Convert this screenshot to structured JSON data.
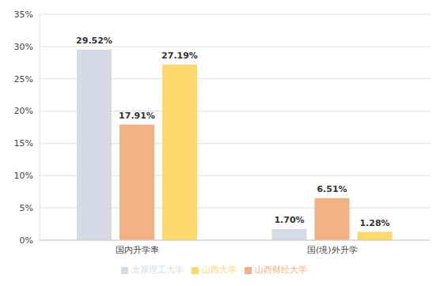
{
  "chart_data": {
    "type": "bar",
    "categories": [
      "国内升学率",
      "国(境)外升学"
    ],
    "series": [
      {
        "name": "太原理工大学",
        "color": "#d5dbe5",
        "values": [
          29.52,
          1.7
        ],
        "value_labels": [
          "29.52%",
          "1.70%"
        ]
      },
      {
        "name": "山西财经大学",
        "color": "#f2b183",
        "values": [
          17.91,
          6.51
        ],
        "value_labels": [
          "17.91%",
          "6.51%"
        ]
      },
      {
        "name": "山西大学",
        "color": "#fdd86a",
        "values": [
          27.19,
          1.28
        ],
        "value_labels": [
          "27.19%",
          "1.28%"
        ]
      }
    ],
    "ylim": [
      0,
      35
    ],
    "yticks": [
      {
        "value": 0,
        "label": "0%"
      },
      {
        "value": 5,
        "label": "5%"
      },
      {
        "value": 10,
        "label": "10%"
      },
      {
        "value": 15,
        "label": "15%"
      },
      {
        "value": 20,
        "label": "20%"
      },
      {
        "value": 25,
        "label": "25%"
      },
      {
        "value": 30,
        "label": "30%"
      },
      {
        "value": 35,
        "label": "35%"
      }
    ],
    "grid": true,
    "legend": "bottom",
    "data_labels": true
  }
}
